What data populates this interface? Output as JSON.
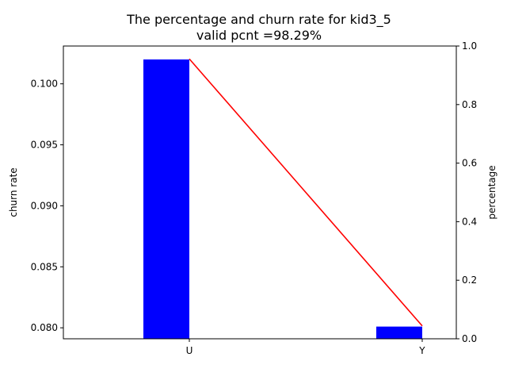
{
  "chart_data": {
    "type": "bar",
    "title": "The percentage and churn rate for kid3_5",
    "subtitle": "valid pcnt =98.29%",
    "categories": [
      "U",
      "Y"
    ],
    "ylabel": "churn rate",
    "y2label": "percentage",
    "ylim": [
      0.0791,
      0.1031
    ],
    "y2lim": [
      0.0,
      1.0
    ],
    "yticks": [
      "0.080",
      "0.085",
      "0.090",
      "0.095",
      "0.100"
    ],
    "y2ticks": [
      "0.0",
      "0.2",
      "0.4",
      "0.6",
      "0.8",
      "1.0"
    ],
    "grid": false,
    "series": [
      {
        "name": "churn rate",
        "type": "bar",
        "axis": "left",
        "values": [
          0.102,
          0.0801
        ],
        "color": "#0000ff"
      },
      {
        "name": "percentage",
        "type": "line",
        "axis": "right",
        "values": [
          0.956,
          0.044
        ],
        "color": "#ff0000"
      }
    ]
  }
}
